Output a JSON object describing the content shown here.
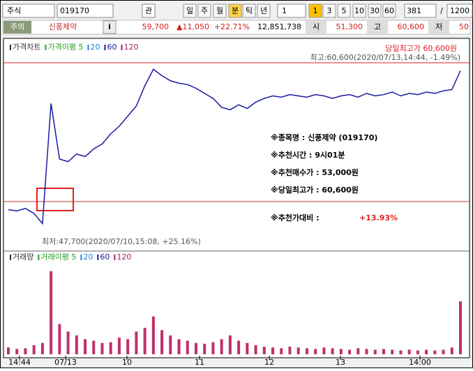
{
  "toolbar": {
    "market": "주식",
    "code": "019170",
    "fav": "관",
    "periods": [
      "일",
      "주",
      "월",
      "분",
      "틱",
      "년"
    ],
    "unit": "1",
    "minutes": [
      "1",
      "3",
      "5",
      "10",
      "30",
      "60"
    ],
    "count": "381",
    "sep": "/",
    "total": "1200"
  },
  "quote": {
    "warning": "주의",
    "name": "신풍제약",
    "info": "i",
    "price": "59,700",
    "change": "▲11,050",
    "rate": "+22.71%",
    "volume": "12,851,738",
    "open_label": "시",
    "open": "51,300",
    "high_label": "고",
    "high": "60,600",
    "low_label": "저",
    "low": "50"
  },
  "chart_data": [
    {
      "type": "line",
      "legend": [
        "가격차트",
        "가격이평 5",
        "20",
        "60",
        "120"
      ],
      "color": "#1a1aa0",
      "values": [
        49000,
        48900,
        49100,
        48700,
        47900,
        57400,
        53000,
        52800,
        53400,
        53200,
        53800,
        54200,
        55000,
        55600,
        56400,
        57200,
        58800,
        60100,
        59600,
        59200,
        59000,
        58900,
        58600,
        58200,
        57800,
        57100,
        56900,
        57300,
        57000,
        57500,
        57800,
        58000,
        57900,
        58100,
        58000,
        57900,
        58100,
        58000,
        57800,
        58000,
        58100,
        57900,
        58200,
        58000,
        58100,
        58300,
        58000,
        58200,
        58100,
        58300,
        58200,
        58400,
        58500,
        60000
      ],
      "ylim": [
        46000,
        62000
      ],
      "annotations": {
        "day_high": "당일최고가 60,600원",
        "max": "최고:60,600(2020/07/13,14:44, -1.49%)",
        "min": "최저:47,700(2020/07/10,15:08, +25.16%)",
        "box": [
          "※종목명 : 신풍제약 (019170)",
          "※추천시간 : 9시01분",
          "※추천매수가 : 53,000원",
          "※당일최고가 : 60,600원"
        ],
        "vs_label": "※추천가대비 :",
        "vs_value": "+13.93%"
      }
    },
    {
      "type": "bar",
      "legend": [
        "거래량",
        "거래이평 5",
        "20",
        "60",
        "120"
      ],
      "color": "#c0306a",
      "values": [
        90000,
        70000,
        80000,
        120000,
        150000,
        1100000,
        400000,
        300000,
        250000,
        200000,
        180000,
        150000,
        160000,
        220000,
        200000,
        300000,
        350000,
        500000,
        320000,
        250000,
        200000,
        180000,
        150000,
        140000,
        160000,
        200000,
        250000,
        180000,
        150000,
        120000,
        100000,
        90000,
        80000,
        100000,
        90000,
        80000,
        70000,
        90000,
        80000,
        70000,
        60000,
        80000,
        70000,
        60000,
        70000,
        60000,
        50000,
        60000,
        50000,
        60000,
        50000,
        60000,
        90000,
        700000
      ],
      "ylim": [
        0,
        1200000
      ],
      "x_labels": [
        "14:44",
        "07/13",
        "10",
        "11",
        "12",
        "13",
        "14:00"
      ]
    }
  ]
}
